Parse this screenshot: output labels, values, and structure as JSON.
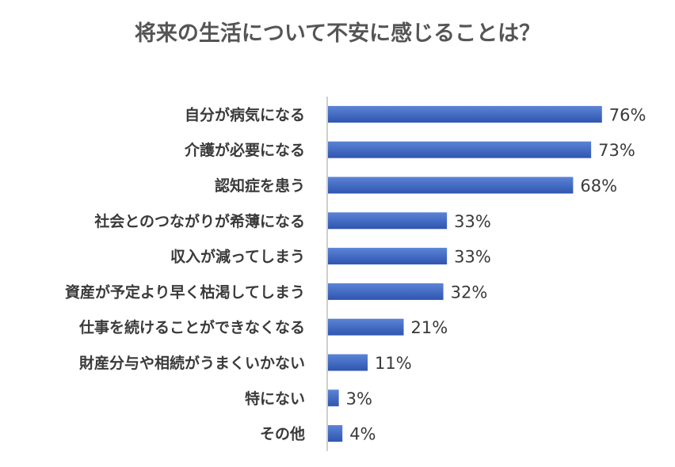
{
  "chart_data": {
    "type": "bar",
    "orientation": "horizontal",
    "title": "将来の生活について不安に感じることは？",
    "categories": [
      "自分が病気になる",
      "介護が必要になる",
      "認知症を患う",
      "社会とのつながりが希薄になる",
      "収入が減ってしまう",
      "資産が予定より早く枯渇してしまう",
      "仕事を続けることができなくなる",
      "財産分与や相続がうまくいかない",
      "特にない",
      "その他"
    ],
    "values": [
      76,
      73,
      68,
      33,
      33,
      32,
      21,
      11,
      3,
      4
    ],
    "value_labels": [
      "76%",
      "73%",
      "68%",
      "33%",
      "33%",
      "32%",
      "21%",
      "11%",
      "3%",
      "4%"
    ],
    "unit": "%",
    "xlim": [
      0,
      100
    ],
    "grid": false,
    "legend": "none",
    "colors": {
      "bar_top": "#5b84d6",
      "bar_bottom": "#2f55b0",
      "axis": "#bfbfbf",
      "label_text": "#3a3a3a",
      "title_text": "#555555"
    }
  }
}
